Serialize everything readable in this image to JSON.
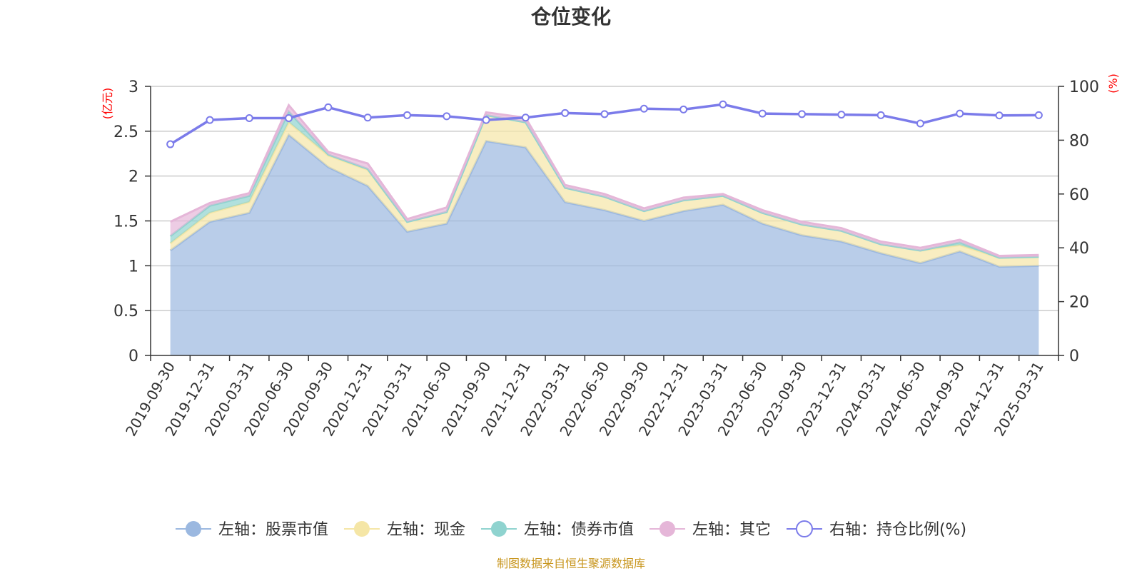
{
  "chart_data": {
    "type": "area",
    "title": "仓位变化",
    "left_unit": "(亿元)",
    "right_unit": "(%)",
    "categories": [
      "2019-09-30",
      "2019-12-31",
      "2020-03-31",
      "2020-06-30",
      "2020-09-30",
      "2020-12-31",
      "2021-03-31",
      "2021-06-30",
      "2021-09-30",
      "2021-12-31",
      "2022-03-31",
      "2022-06-30",
      "2022-09-30",
      "2022-12-31",
      "2023-03-31",
      "2023-06-30",
      "2023-09-30",
      "2023-12-31",
      "2024-03-31",
      "2024-06-30",
      "2024-09-30",
      "2024-12-31",
      "2025-03-31"
    ],
    "left_ylim": [
      0,
      3
    ],
    "left_ticks": [
      "0",
      "0.5",
      "1",
      "1.5",
      "2",
      "2.5",
      "3"
    ],
    "right_ylim": [
      0,
      100
    ],
    "right_ticks": [
      "0",
      "20",
      "40",
      "60",
      "80",
      "100"
    ],
    "series": [
      {
        "name": "左轴：股票市值",
        "axis": "left",
        "stack": true,
        "color": "#9bb8e0",
        "values": [
          1.17,
          1.49,
          1.59,
          2.46,
          2.1,
          1.89,
          1.38,
          1.47,
          2.39,
          2.32,
          1.71,
          1.62,
          1.5,
          1.61,
          1.68,
          1.47,
          1.34,
          1.27,
          1.14,
          1.03,
          1.16,
          0.99,
          1.0
        ]
      },
      {
        "name": "左轴：现金",
        "axis": "left",
        "stack": true,
        "color": "#f5e6a6",
        "values": [
          0.08,
          0.1,
          0.12,
          0.14,
          0.13,
          0.18,
          0.11,
          0.13,
          0.29,
          0.28,
          0.16,
          0.15,
          0.11,
          0.12,
          0.1,
          0.12,
          0.12,
          0.12,
          0.1,
          0.14,
          0.07,
          0.1,
          0.1
        ]
      },
      {
        "name": "左轴：债券市值",
        "axis": "left",
        "stack": true,
        "color": "#8fd3cf",
        "values": [
          0.08,
          0.08,
          0.07,
          0.12,
          0.01,
          0.01,
          0.0,
          0.0,
          0.0,
          0.0,
          0.0,
          0.0,
          0.0,
          0.0,
          0.0,
          0.0,
          0.0,
          0.0,
          0.0,
          0.0,
          0.03,
          0.0,
          0.0
        ]
      },
      {
        "name": "左轴：其它",
        "axis": "left",
        "stack": true,
        "color": "#e5b6d8",
        "values": [
          0.16,
          0.03,
          0.03,
          0.07,
          0.03,
          0.06,
          0.03,
          0.05,
          0.03,
          0.05,
          0.03,
          0.03,
          0.03,
          0.03,
          0.02,
          0.03,
          0.03,
          0.03,
          0.03,
          0.03,
          0.03,
          0.02,
          0.02
        ]
      },
      {
        "name": "右轴：持仓比例(%)",
        "axis": "right",
        "stack": false,
        "color": "#7b7bea",
        "values": [
          78.5,
          87.5,
          88.2,
          88.2,
          92.2,
          88.4,
          89.3,
          88.9,
          87.5,
          88.4,
          90.1,
          89.7,
          91.7,
          91.4,
          93.3,
          89.9,
          89.7,
          89.5,
          89.3,
          86.2,
          89.9,
          89.2,
          89.3
        ]
      }
    ],
    "grid": true,
    "legend_position": "bottom"
  },
  "footer": {
    "source": "制图数据来自恒生聚源数据库"
  }
}
